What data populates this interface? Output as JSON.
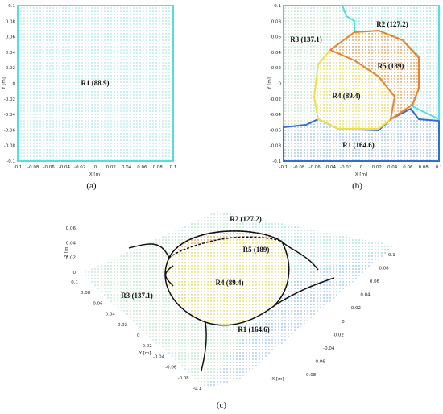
{
  "panels": [
    {
      "label": "(a)",
      "x_label": "X [m]",
      "y_label": "Y [m]",
      "x_ticks": [
        "-0.1",
        "-0.08",
        "-0.06",
        "-0.04",
        "-0.02",
        "0",
        "0.02",
        "0.04",
        "0.06",
        "0.08",
        "0.1"
      ],
      "y_ticks": [
        "0.1",
        "0.08",
        "0.06",
        "0.04",
        "0.02",
        "0",
        "-0.02",
        "-0.04",
        "-0.06",
        "-0.08",
        "-0.1"
      ],
      "regions": [
        "R1 (88.9)"
      ]
    },
    {
      "label": "(b)",
      "x_label": "X [m]",
      "y_label": "Y [m]",
      "x_ticks": [
        "-0.1",
        "-0.08",
        "-0.06",
        "-0.04",
        "-0.02",
        "0",
        "0.02",
        "0.04",
        "0.06",
        "0.08",
        "0.1"
      ],
      "y_ticks": [
        "0.1",
        "0.08",
        "0.06",
        "0.04",
        "0.02",
        "0",
        "-0.02",
        "-0.04",
        "-0.06",
        "-0.08",
        "-0.1"
      ],
      "regions": [
        "R1 (164.6)",
        "R2 (127.2)",
        "R3 (137.1)",
        "R4 (89.4)",
        "R5 (189)"
      ]
    },
    {
      "label": "(c)",
      "x_label": "X [m]",
      "y_label": "Y [m]",
      "z_label": "Z [m]",
      "x_ticks": [
        "0.1",
        "0.08",
        "0.06",
        "0.04",
        "0.02",
        "0",
        "-0.02",
        "-0.04",
        "-0.06",
        "-0.08"
      ],
      "y_ticks": [
        "0.1",
        "0.08",
        "0.06",
        "0.04",
        "0.02",
        "0",
        "-0.02",
        "-0.04",
        "-0.06",
        "-0.08",
        "-0.1"
      ],
      "z_ticks": [
        "0.06",
        "0.04",
        "0.02",
        "0"
      ],
      "regions": [
        "R2 (127.2)",
        "R5 (189)",
        "R4 (89.4)",
        "R3 (137.1)",
        "R1 (164.6)"
      ]
    }
  ]
}
